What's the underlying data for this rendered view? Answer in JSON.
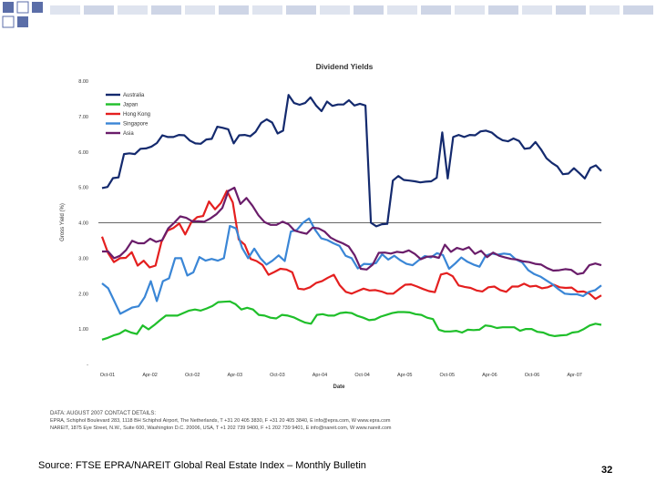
{
  "slide": {
    "contact_title": "DATA: AUGUST 2007 CONTACT DETAILS:",
    "contact_line_1": "EPRA, Schiphol Boulevard 283, 1118 BH Schiphol Airport, The Netherlands, T +31 20 405 3830, F +31 20 405 3840, E info@epra.com, W www.epra.com",
    "contact_line_2": "NAREIT, 1875 Eye Street, N.W., Suite 600, Washington D.C. 20006, USA, T +1 202 739 9400, F +1 202 739 9401, E info@nareit.com, W www.nareit.com",
    "source": "Source: FTSE EPRA/NAREIT Global Real Estate Index – Monthly Bulletin",
    "page_number": "32",
    "accent_color": "#2e3f8f",
    "decoration_color": "#5b6ea8"
  },
  "chart_data": {
    "type": "line",
    "title": "Dividend Yields",
    "xlabel": "Date",
    "ylabel": "Gross Yield (%)",
    "ylim": [
      0,
      8
    ],
    "yticks": [
      "-",
      "1.00",
      "2.00",
      "3.00",
      "4.00",
      "5.00",
      "6.00",
      "7.00",
      "8.00"
    ],
    "x_labels": [
      "Oct-01",
      "Apr-02",
      "Oct-02",
      "Apr-03",
      "Oct-03",
      "Apr-04",
      "Oct-04",
      "Apr-05",
      "Oct-05",
      "Apr-06",
      "Oct-06",
      "Apr-07"
    ],
    "x_start": "Oct-01",
    "x_end": "Aug-07",
    "legend_position": "top-left",
    "grid": "horizontal at 4.00",
    "series": [
      {
        "name": "Australia",
        "color": "#142a6e",
        "values": [
          4.98,
          5.01,
          5.26,
          5.28,
          5.94,
          5.96,
          5.94,
          6.09,
          6.1,
          6.15,
          6.25,
          6.47,
          6.42,
          6.42,
          6.48,
          6.47,
          6.32,
          6.24,
          6.23,
          6.35,
          6.37,
          6.71,
          6.68,
          6.64,
          6.24,
          6.47,
          6.48,
          6.44,
          6.57,
          6.82,
          6.92,
          6.83,
          6.52,
          6.6,
          7.61,
          7.38,
          7.33,
          7.38,
          7.54,
          7.31,
          7.15,
          7.42,
          7.3,
          7.34,
          7.34,
          7.46,
          7.31,
          7.36,
          7.31,
          4.0,
          3.9,
          3.96,
          3.97,
          5.19,
          5.32,
          5.21,
          5.19,
          5.17,
          5.14,
          5.16,
          5.17,
          5.27,
          6.55,
          5.25,
          6.42,
          6.48,
          6.42,
          6.48,
          6.47,
          6.58,
          6.6,
          6.55,
          6.42,
          6.33,
          6.3,
          6.38,
          6.31,
          6.09,
          6.11,
          6.28,
          6.07,
          5.82,
          5.69,
          5.59,
          5.37,
          5.39,
          5.54,
          5.4,
          5.25,
          5.55,
          5.62,
          5.46
        ],
        "visible": true
      },
      {
        "name": "Japan",
        "color": "#1fbf2a",
        "values": [
          0.7,
          0.75,
          0.82,
          0.87,
          0.97,
          0.9,
          0.86,
          1.1,
          0.99,
          1.11,
          1.25,
          1.38,
          1.38,
          1.38,
          1.45,
          1.52,
          1.55,
          1.52,
          1.58,
          1.65,
          1.76,
          1.77,
          1.78,
          1.7,
          1.55,
          1.6,
          1.55,
          1.4,
          1.38,
          1.32,
          1.3,
          1.4,
          1.38,
          1.33,
          1.25,
          1.18,
          1.15,
          1.4,
          1.42,
          1.38,
          1.38,
          1.45,
          1.47,
          1.45,
          1.37,
          1.32,
          1.25,
          1.27,
          1.35,
          1.4,
          1.45,
          1.48,
          1.48,
          1.47,
          1.42,
          1.4,
          1.32,
          1.28,
          0.98,
          0.93,
          0.93,
          0.95,
          0.9,
          0.98,
          0.97,
          0.98,
          1.1,
          1.08,
          1.03,
          1.05,
          1.05,
          1.05,
          0.95,
          1.0,
          1.0,
          0.92,
          0.9,
          0.83,
          0.8,
          0.82,
          0.83,
          0.9,
          0.92,
          1.0,
          1.1,
          1.15,
          1.12
        ],
        "visible": true
      },
      {
        "name": "Hong Kong",
        "color": "#e41f1f",
        "values": [
          3.61,
          3.15,
          2.89,
          3.0,
          3.01,
          3.17,
          2.79,
          2.93,
          2.74,
          2.79,
          3.46,
          3.78,
          3.85,
          3.98,
          3.67,
          4.01,
          4.16,
          4.19,
          4.6,
          4.38,
          4.56,
          4.9,
          4.57,
          3.53,
          3.38,
          2.98,
          2.92,
          2.81,
          2.53,
          2.61,
          2.7,
          2.68,
          2.6,
          2.14,
          2.12,
          2.18,
          2.3,
          2.35,
          2.45,
          2.53,
          2.23,
          2.05,
          2.0,
          2.07,
          2.14,
          2.09,
          2.1,
          2.06,
          2.0,
          2.0,
          2.13,
          2.25,
          2.26,
          2.2,
          2.13,
          2.07,
          2.04,
          2.54,
          2.58,
          2.49,
          2.23,
          2.19,
          2.16,
          2.09,
          2.06,
          2.18,
          2.2,
          2.1,
          2.05,
          2.2,
          2.2,
          2.28,
          2.2,
          2.22,
          2.15,
          2.18,
          2.25,
          2.18,
          2.16,
          2.17,
          2.05,
          2.06,
          2.0,
          1.85,
          1.95
        ]
      },
      {
        "name": "Singapore",
        "color": "#3a86d6",
        "values": [
          2.29,
          2.15,
          1.79,
          1.43,
          1.52,
          1.61,
          1.64,
          1.9,
          2.35,
          1.79,
          2.35,
          2.43,
          3.0,
          3.0,
          2.51,
          2.6,
          3.03,
          2.93,
          2.98,
          2.93,
          3.0,
          3.91,
          3.84,
          3.29,
          3.0,
          3.27,
          3.0,
          2.82,
          2.93,
          3.08,
          2.92,
          3.75,
          3.8,
          4.0,
          4.12,
          3.8,
          3.56,
          3.51,
          3.42,
          3.35,
          3.07,
          3.0,
          2.71,
          2.84,
          2.83,
          2.86,
          3.11,
          2.96,
          3.07,
          2.94,
          2.84,
          2.8,
          2.94,
          3.06,
          3.02,
          3.14,
          3.09,
          2.7,
          2.85,
          3.02,
          2.9,
          2.82,
          2.76,
          3.07,
          3.13,
          3.1,
          3.13,
          3.11,
          2.96,
          2.88,
          2.66,
          2.55,
          2.48,
          2.37,
          2.26,
          2.12,
          2.0,
          1.98,
          1.98,
          1.93,
          2.05,
          2.1,
          2.23
        ]
      },
      {
        "name": "Asia",
        "color": "#6a1d6a",
        "values": [
          3.19,
          3.19,
          3.0,
          3.07,
          3.23,
          3.49,
          3.42,
          3.42,
          3.55,
          3.46,
          3.51,
          3.84,
          4.0,
          4.18,
          4.14,
          4.04,
          4.04,
          4.03,
          4.12,
          4.24,
          4.42,
          4.9,
          4.99,
          4.53,
          4.7,
          4.48,
          4.21,
          4.02,
          3.94,
          3.94,
          4.03,
          3.96,
          3.78,
          3.73,
          3.69,
          3.86,
          3.84,
          3.75,
          3.58,
          3.49,
          3.42,
          3.33,
          3.08,
          2.7,
          2.68,
          2.82,
          3.15,
          3.16,
          3.13,
          3.18,
          3.16,
          3.22,
          3.12,
          2.97,
          3.04,
          3.05,
          3.01,
          3.38,
          3.18,
          3.29,
          3.24,
          3.31,
          3.12,
          3.21,
          3.03,
          3.16,
          3.07,
          3.02,
          2.98,
          2.96,
          2.91,
          2.89,
          2.84,
          2.82,
          2.72,
          2.65,
          2.66,
          2.69,
          2.67,
          2.55,
          2.58,
          2.8,
          2.85,
          2.8
        ]
      }
    ]
  }
}
